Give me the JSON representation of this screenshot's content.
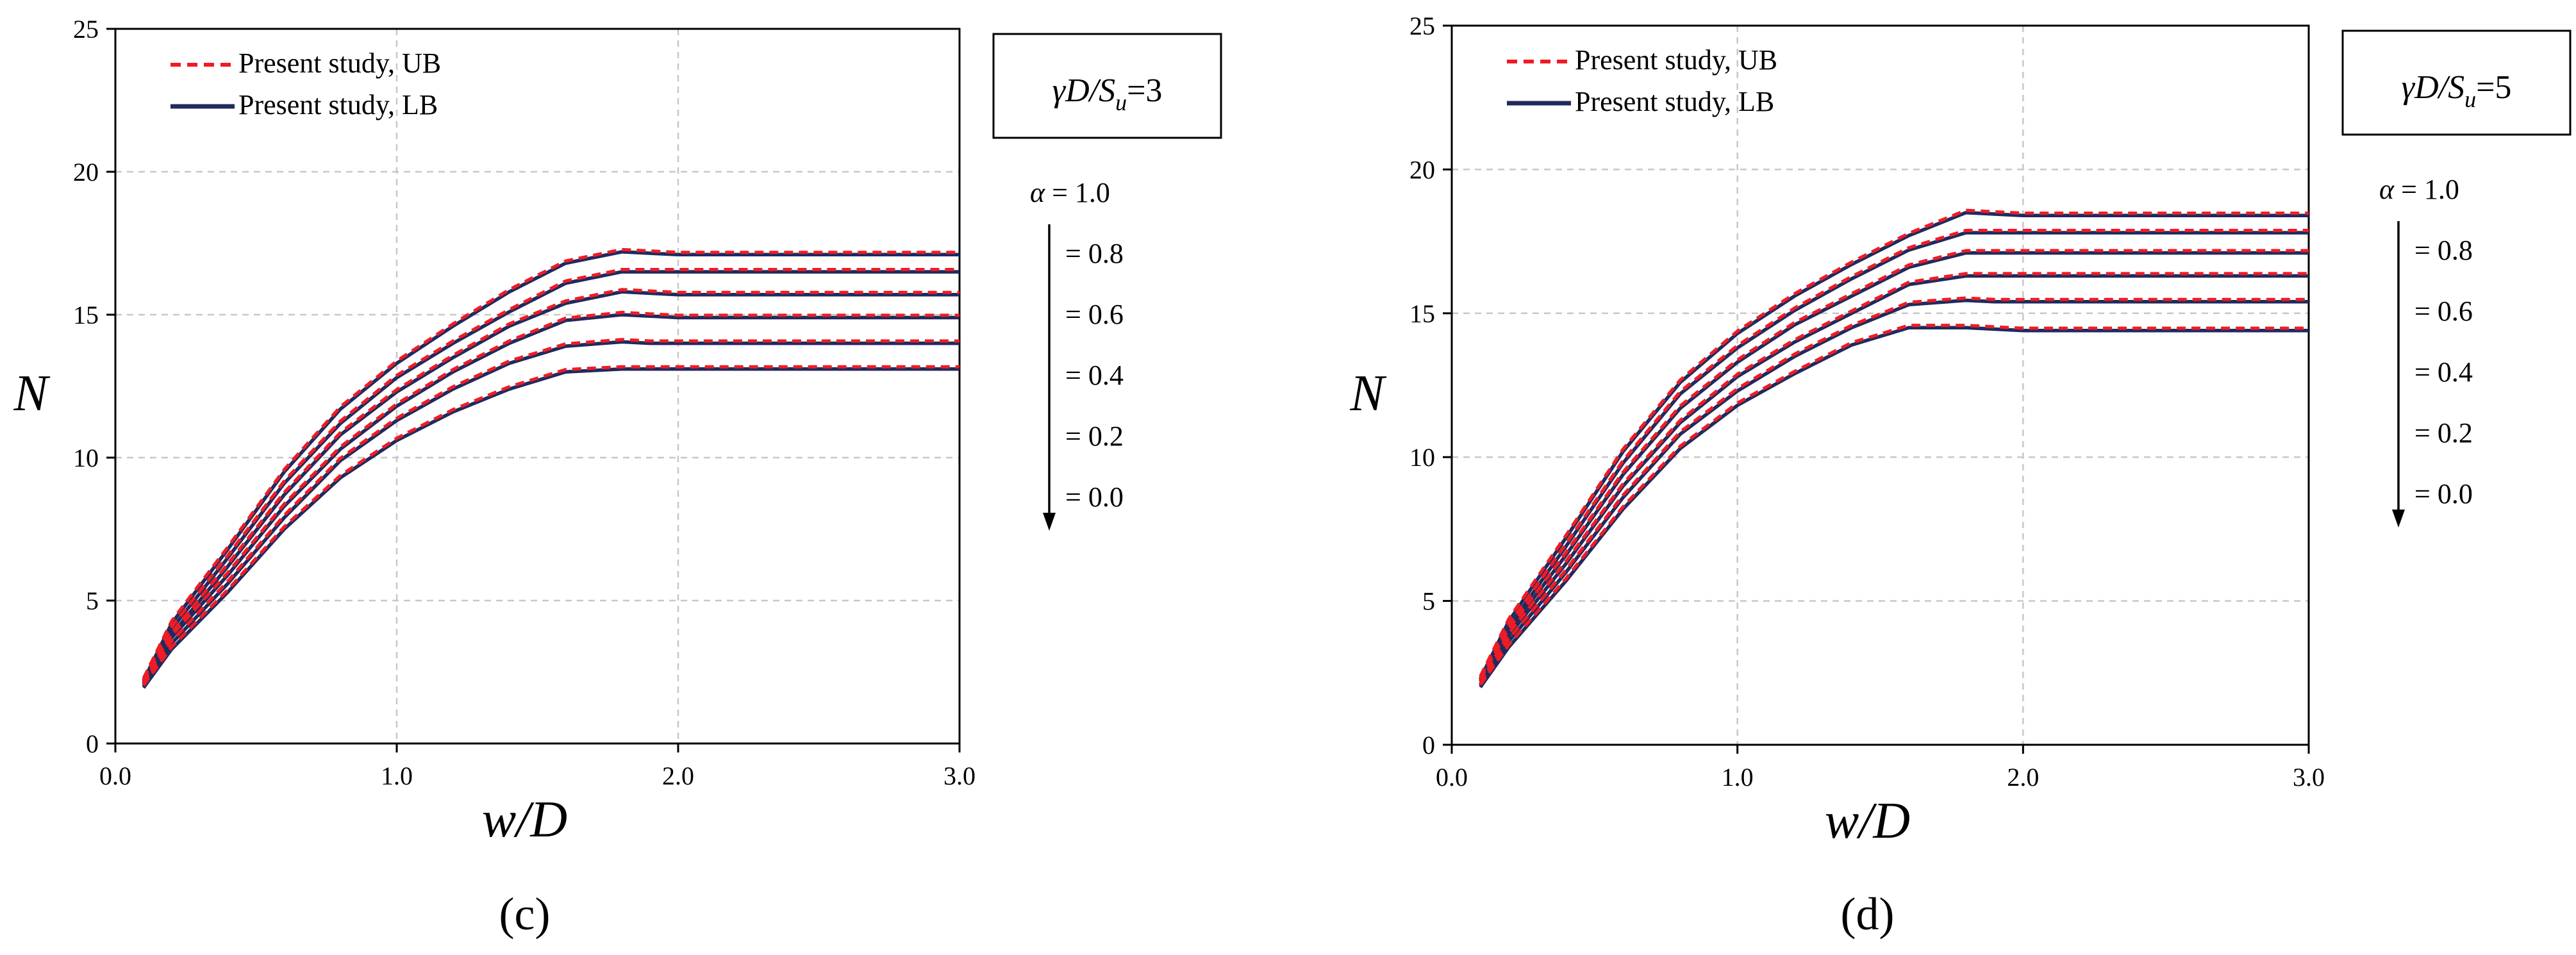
{
  "figure": {
    "captions": [
      "(c)",
      "(d)"
    ]
  },
  "colors": {
    "ub": "#ee1c25",
    "lb": "#1f2a5e",
    "grid": "#c8c8c8",
    "axis": "#000000"
  },
  "chart_data": [
    {
      "type": "line",
      "panel": "(c)",
      "param_label": {
        "prefix": "γD/S",
        "sub": "u",
        "suffix": "=3"
      },
      "xlabel": "w/D",
      "ylabel": "N",
      "xlim": [
        0,
        3
      ],
      "ylim": [
        0,
        25
      ],
      "x_ticks": [
        "0.0",
        "1.0",
        "2.0",
        "3.0"
      ],
      "y_ticks": [
        "0",
        "5",
        "10",
        "15",
        "20",
        "25"
      ],
      "grid": true,
      "legend": [
        {
          "name": "Present study, UB",
          "style": "dashed"
        },
        {
          "name": "Present study, LB",
          "style": "solid"
        }
      ],
      "alpha_labels": [
        "α = 1.0",
        "= 0.8",
        "= 0.6",
        "= 0.4",
        "= 0.2",
        "= 0.0"
      ],
      "x": [
        0.1,
        0.2,
        0.4,
        0.6,
        0.8,
        1.0,
        1.2,
        1.4,
        1.6,
        1.8,
        1.9,
        2.0,
        2.5,
        3.0
      ],
      "series": [
        {
          "name": "α = 1.0",
          "values": [
            2.2,
            4.2,
            6.8,
            9.5,
            11.7,
            13.3,
            14.6,
            15.8,
            16.8,
            17.2,
            17.15,
            17.1,
            17.1,
            17.1
          ]
        },
        {
          "name": "α = 0.8",
          "values": [
            2.15,
            4.0,
            6.5,
            9.1,
            11.2,
            12.8,
            14.0,
            15.1,
            16.1,
            16.5,
            16.5,
            16.5,
            16.5,
            16.5
          ]
        },
        {
          "name": "α = 0.6",
          "values": [
            2.1,
            3.8,
            6.2,
            8.7,
            10.8,
            12.3,
            13.5,
            14.6,
            15.4,
            15.8,
            15.75,
            15.7,
            15.7,
            15.7
          ]
        },
        {
          "name": "α = 0.4",
          "values": [
            2.05,
            3.7,
            5.9,
            8.3,
            10.3,
            11.8,
            13.0,
            14.0,
            14.8,
            15.0,
            14.95,
            14.9,
            14.9,
            14.9
          ]
        },
        {
          "name": "α = 0.2",
          "values": [
            2.0,
            3.5,
            5.6,
            7.9,
            9.9,
            11.3,
            12.4,
            13.3,
            13.9,
            14.05,
            14.0,
            14.0,
            14.0,
            14.0
          ]
        },
        {
          "name": "α = 0.0",
          "values": [
            1.95,
            3.3,
            5.3,
            7.5,
            9.3,
            10.6,
            11.6,
            12.4,
            13.0,
            13.1,
            13.1,
            13.1,
            13.1,
            13.1
          ]
        }
      ]
    },
    {
      "type": "line",
      "panel": "(d)",
      "param_label": {
        "prefix": "γD/S",
        "sub": "u",
        "suffix": "=5"
      },
      "xlabel": "w/D",
      "ylabel": "N",
      "xlim": [
        0,
        3
      ],
      "ylim": [
        0,
        25
      ],
      "x_ticks": [
        "0.0",
        "1.0",
        "2.0",
        "3.0"
      ],
      "y_ticks": [
        "0",
        "5",
        "10",
        "15",
        "20",
        "25"
      ],
      "grid": true,
      "legend": [
        {
          "name": "Present study, UB",
          "style": "dashed"
        },
        {
          "name": "Present study, LB",
          "style": "solid"
        }
      ],
      "alpha_labels": [
        "α = 1.0",
        "= 0.8",
        "= 0.6",
        "= 0.4",
        "= 0.2",
        "= 0.0"
      ],
      "x": [
        0.1,
        0.2,
        0.4,
        0.6,
        0.8,
        1.0,
        1.2,
        1.4,
        1.6,
        1.8,
        1.9,
        2.0,
        2.5,
        3.0
      ],
      "series": [
        {
          "name": "α = 1.0",
          "values": [
            2.3,
            4.3,
            7.2,
            10.2,
            12.6,
            14.3,
            15.6,
            16.7,
            17.7,
            18.5,
            18.45,
            18.4,
            18.4,
            18.4
          ]
        },
        {
          "name": "α = 0.8",
          "values": [
            2.25,
            4.1,
            6.9,
            9.8,
            12.2,
            13.8,
            15.1,
            16.2,
            17.2,
            17.8,
            17.8,
            17.8,
            17.8,
            17.8
          ]
        },
        {
          "name": "α = 0.6",
          "values": [
            2.2,
            3.95,
            6.6,
            9.4,
            11.7,
            13.3,
            14.6,
            15.6,
            16.6,
            17.1,
            17.1,
            17.1,
            17.1,
            17.1
          ]
        },
        {
          "name": "α = 0.4",
          "values": [
            2.1,
            3.8,
            6.3,
            9.0,
            11.2,
            12.8,
            14.0,
            15.0,
            16.0,
            16.3,
            16.3,
            16.3,
            16.3,
            16.3
          ]
        },
        {
          "name": "α = 0.2",
          "values": [
            2.05,
            3.6,
            6.0,
            8.6,
            10.8,
            12.3,
            13.5,
            14.5,
            15.3,
            15.45,
            15.4,
            15.4,
            15.4,
            15.4
          ]
        },
        {
          "name": "α = 0.0",
          "values": [
            2.0,
            3.4,
            5.7,
            8.2,
            10.3,
            11.8,
            12.9,
            13.9,
            14.5,
            14.5,
            14.45,
            14.4,
            14.4,
            14.4
          ]
        }
      ]
    }
  ]
}
